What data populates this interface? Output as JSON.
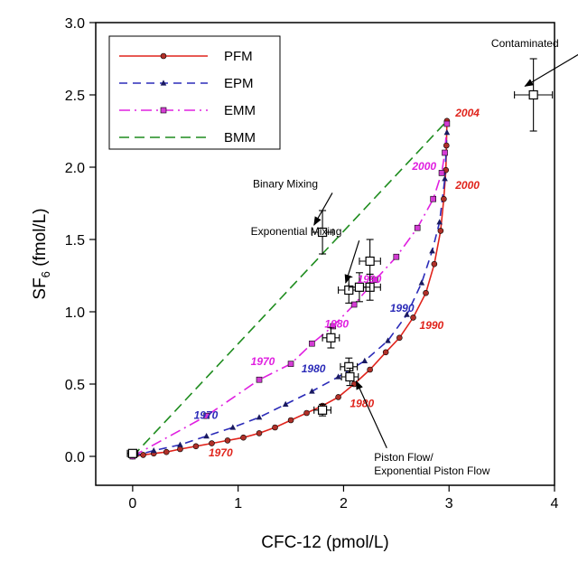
{
  "chart_data": {
    "type": "line",
    "xlabel": "CFC-12 (pmol/L)",
    "ylabel": "SF6 (fmol/L)",
    "xlim": [
      -0.35,
      4.0
    ],
    "ylim": [
      -0.2,
      3.0
    ],
    "xticks": [
      "0",
      "1",
      "2",
      "3",
      "4"
    ],
    "yticks": [
      "0.0",
      "0.5",
      "1.0",
      "1.5",
      "2.0",
      "2.5",
      "3.0"
    ],
    "legend_position": "top-left",
    "series": [
      {
        "name": "PFM",
        "color": "#e0241c",
        "dash": "solid",
        "marker": "circle",
        "marker_color": "#b03028",
        "x": [
          0.0,
          0.1,
          0.2,
          0.32,
          0.45,
          0.6,
          0.75,
          0.9,
          1.05,
          1.2,
          1.35,
          1.5,
          1.65,
          1.8,
          1.95,
          2.1,
          2.25,
          2.4,
          2.53,
          2.66,
          2.78,
          2.86,
          2.92,
          2.95,
          2.97,
          2.975,
          2.98
        ],
        "y": [
          0.0,
          0.01,
          0.02,
          0.03,
          0.05,
          0.07,
          0.09,
          0.11,
          0.13,
          0.16,
          0.2,
          0.25,
          0.3,
          0.35,
          0.41,
          0.5,
          0.6,
          0.72,
          0.82,
          0.96,
          1.13,
          1.33,
          1.56,
          1.78,
          1.98,
          2.15,
          2.32
        ]
      },
      {
        "name": "EPM",
        "color": "#2b2bb8",
        "dash": "dash",
        "marker": "triangle",
        "marker_color": "#1a1a60",
        "x": [
          0.0,
          0.2,
          0.45,
          0.7,
          0.95,
          1.2,
          1.45,
          1.7,
          1.95,
          2.2,
          2.42,
          2.6,
          2.74,
          2.84,
          2.91,
          2.96,
          2.98
        ],
        "y": [
          0.0,
          0.04,
          0.08,
          0.14,
          0.2,
          0.27,
          0.36,
          0.45,
          0.55,
          0.66,
          0.8,
          0.98,
          1.2,
          1.42,
          1.62,
          1.92,
          2.24
        ]
      },
      {
        "name": "EMM",
        "color": "#e020e0",
        "dash": "dashdot",
        "marker": "square",
        "marker_color": "#d43cd4",
        "x": [
          0.0,
          0.7,
          1.2,
          1.5,
          1.7,
          1.9,
          2.1,
          2.3,
          2.5,
          2.7,
          2.85,
          2.93,
          2.96,
          2.98
        ],
        "y": [
          0.0,
          0.28,
          0.53,
          0.64,
          0.78,
          0.9,
          1.05,
          1.22,
          1.38,
          1.58,
          1.78,
          1.96,
          2.1,
          2.3
        ]
      },
      {
        "name": "BMM",
        "color": "#1e8c1e",
        "dash": "longdash",
        "marker": "none",
        "x": [
          0.0,
          2.98
        ],
        "y": [
          0.0,
          2.32
        ]
      }
    ],
    "samples": [
      {
        "x": 3.8,
        "y": 2.5,
        "xerr": 0.18,
        "yerr": 0.25
      },
      {
        "x": 1.8,
        "y": 1.55,
        "xerr": 0.1,
        "yerr": 0.15
      },
      {
        "x": 2.25,
        "y": 1.35,
        "xerr": 0.1,
        "yerr": 0.15
      },
      {
        "x": 2.05,
        "y": 1.15,
        "xerr": 0.1,
        "yerr": 0.09
      },
      {
        "x": 2.25,
        "y": 1.17,
        "xerr": 0.1,
        "yerr": 0.09
      },
      {
        "x": 2.15,
        "y": 1.17,
        "xerr": 0.1,
        "yerr": 0.1
      },
      {
        "x": 1.88,
        "y": 0.82,
        "xerr": 0.08,
        "yerr": 0.07
      },
      {
        "x": 2.05,
        "y": 0.62,
        "xerr": 0.08,
        "yerr": 0.06
      },
      {
        "x": 2.06,
        "y": 0.55,
        "xerr": 0.08,
        "yerr": 0.06
      },
      {
        "x": 1.8,
        "y": 0.32,
        "xerr": 0.08,
        "yerr": 0.04
      },
      {
        "x": 0.0,
        "y": 0.02,
        "xerr": 0.05,
        "yerr": 0.02
      }
    ],
    "year_labels": [
      {
        "text": "1970",
        "series": "PFM",
        "x": 0.72,
        "y": 0.0
      },
      {
        "text": "1980",
        "series": "PFM",
        "x": 2.06,
        "y": 0.34
      },
      {
        "text": "1990",
        "series": "PFM",
        "x": 2.72,
        "y": 0.88
      },
      {
        "text": "2000",
        "series": "PFM",
        "x": 3.06,
        "y": 1.85
      },
      {
        "text": "2004",
        "series": "PFM",
        "x": 3.06,
        "y": 2.35
      },
      {
        "text": "1970",
        "series": "EPM",
        "x": 0.58,
        "y": 0.26
      },
      {
        "text": "1980",
        "series": "EPM",
        "x": 1.6,
        "y": 0.58
      },
      {
        "text": "1990",
        "series": "EPM",
        "x": 2.44,
        "y": 1.0
      },
      {
        "text": "1970",
        "series": "EMM",
        "x": 1.12,
        "y": 0.63
      },
      {
        "text": "1980",
        "series": "EMM",
        "x": 1.82,
        "y": 0.89
      },
      {
        "text": "1990",
        "series": "EMM",
        "x": 2.13,
        "y": 1.2
      },
      {
        "text": "2000",
        "series": "EMM",
        "x": 2.65,
        "y": 1.98
      }
    ],
    "annotations": [
      {
        "id": "contaminated",
        "lines": [
          "Contaminated"
        ],
        "tx": 3.4,
        "ty": 2.83,
        "ax": 3.72,
        "ay": 2.56
      },
      {
        "id": "binary-mixing",
        "lines": [
          "Binary Mixing"
        ],
        "tx": 1.14,
        "ty": 1.86,
        "ax": 1.72,
        "ay": 1.6
      },
      {
        "id": "exponential-mixing",
        "lines": [
          "Exponential Mixing"
        ],
        "tx": 1.12,
        "ty": 1.53,
        "ax": 2.02,
        "ay": 1.2
      },
      {
        "id": "piston-flow",
        "lines": [
          "Piston Flow/",
          "Exponential Piston Flow"
        ],
        "tx": 2.29,
        "ty": -0.03,
        "ax": 2.12,
        "ay": 0.52
      }
    ]
  }
}
